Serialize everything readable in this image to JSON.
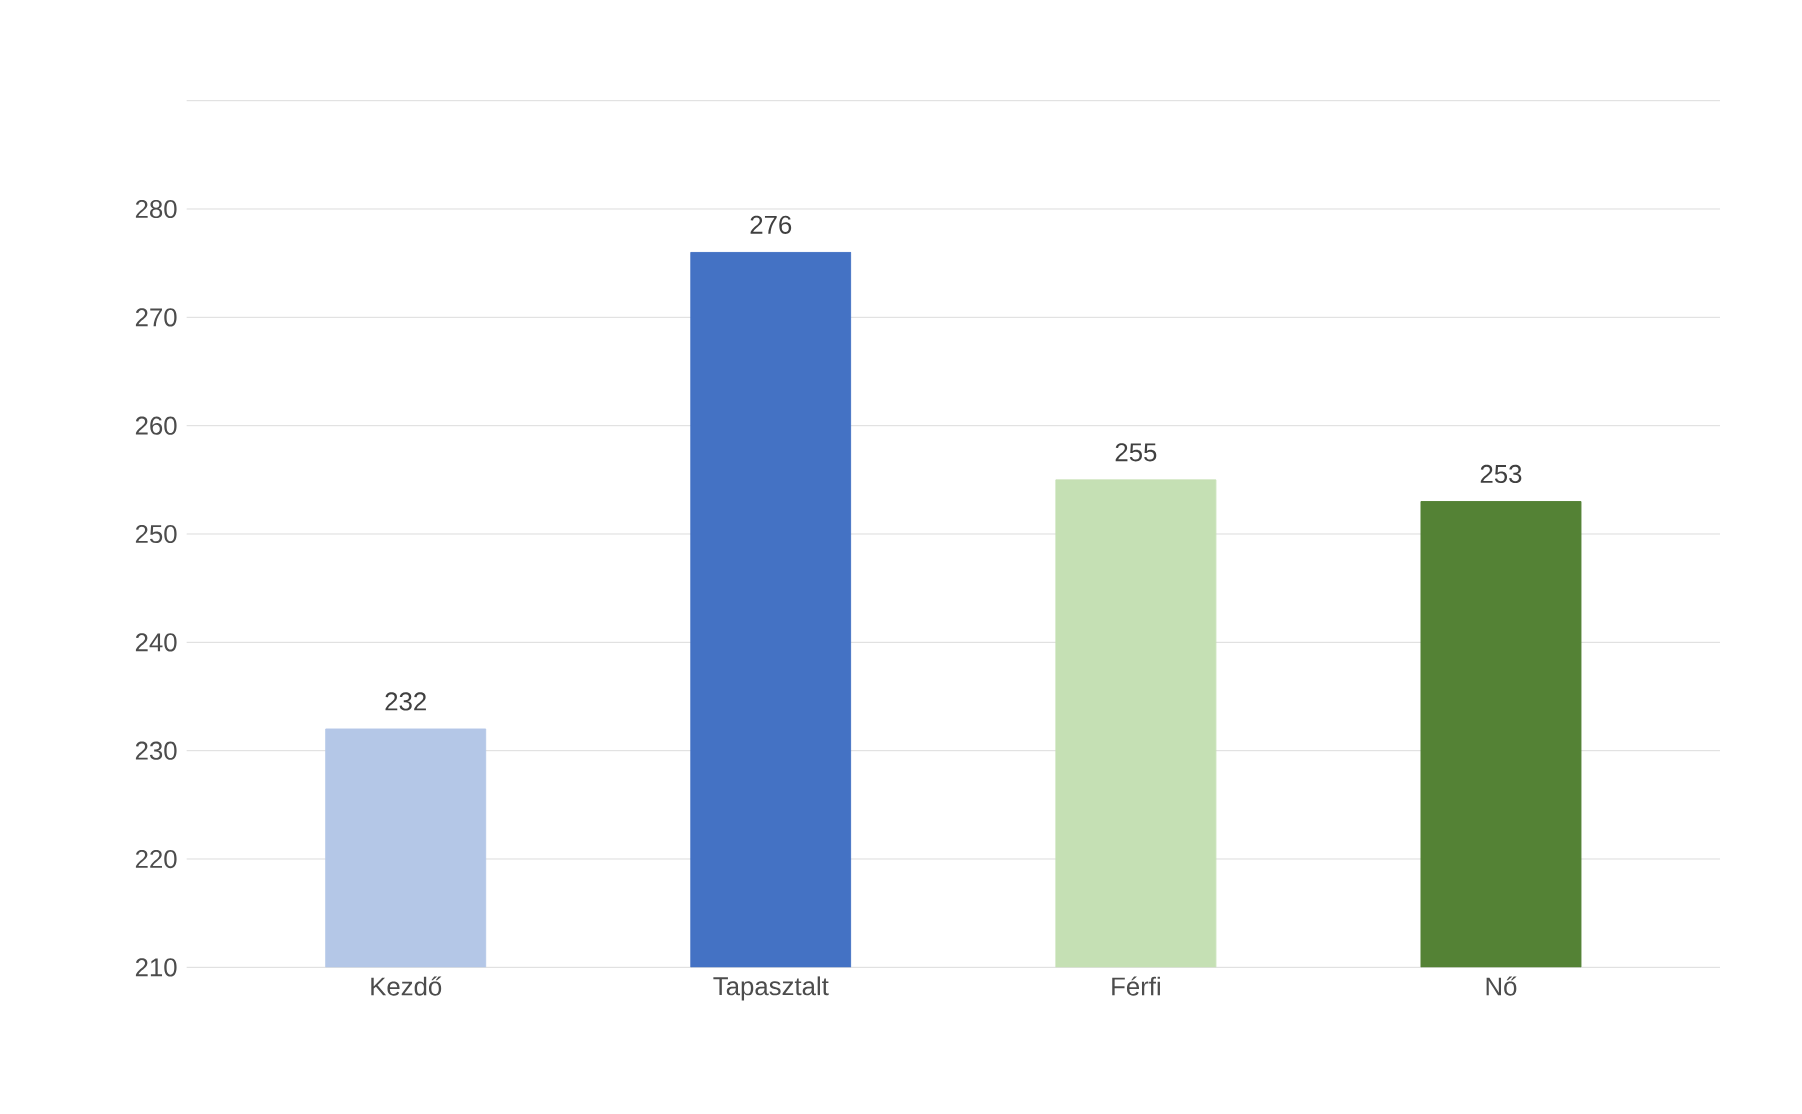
{
  "chart_data": {
    "type": "bar",
    "categories": [
      "Kezdő",
      "Tapasztalt",
      "Férfi",
      "Nő"
    ],
    "values": [
      232,
      276,
      255,
      253
    ],
    "colors": [
      "#b4c7e7",
      "#4472c4",
      "#c5e0b4",
      "#548235"
    ],
    "ylim": [
      210,
      290
    ],
    "yticks": [
      210,
      220,
      230,
      240,
      250,
      260,
      270,
      280,
      {
        "value": 290,
        "label": null
      }
    ],
    "grid": "y",
    "data_labels": true
  }
}
